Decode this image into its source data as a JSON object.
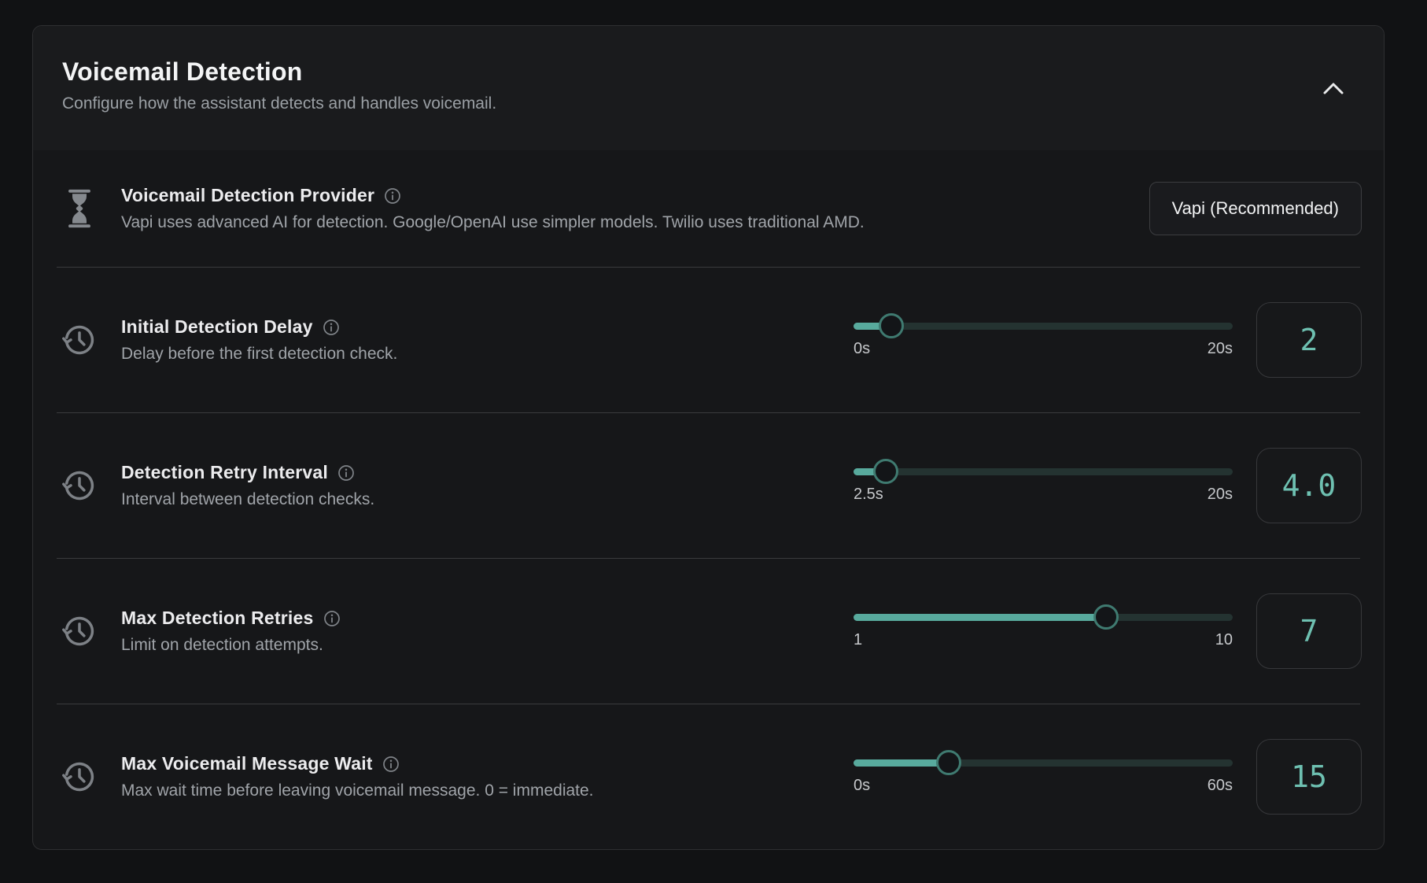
{
  "header": {
    "title": "Voicemail Detection",
    "subtitle": "Configure how the assistant detects and handles voicemail.",
    "collapse_icon": "chevron-up-icon"
  },
  "provider": {
    "icon": "hourglass-icon",
    "label": "Voicemail Detection Provider",
    "info_icon": "info-icon",
    "description": "Vapi uses advanced AI for detection. Google/OpenAI use simpler models. Twilio uses traditional AMD.",
    "button_label": "Vapi (Recommended)"
  },
  "sliders": [
    {
      "icon": "history-clock-icon",
      "label": "Initial Detection Delay",
      "info_icon": "info-icon",
      "description": "Delay before the first detection check.",
      "min": 0,
      "max": 20,
      "value": 2,
      "min_label": "0s",
      "max_label": "20s",
      "value_display": "2"
    },
    {
      "icon": "history-clock-icon",
      "label": "Detection Retry Interval",
      "info_icon": "info-icon",
      "description": "Interval between detection checks.",
      "min": 2.5,
      "max": 20,
      "value": 4,
      "min_label": "2.5s",
      "max_label": "20s",
      "value_display": "4.0"
    },
    {
      "icon": "history-clock-icon",
      "label": "Max Detection Retries",
      "info_icon": "info-icon",
      "description": "Limit on detection attempts.",
      "min": 1,
      "max": 10,
      "value": 7,
      "min_label": "1",
      "max_label": "10",
      "value_display": "7"
    },
    {
      "icon": "history-clock-icon",
      "label": "Max Voicemail Message Wait",
      "info_icon": "info-icon",
      "description": "Max wait time before leaving voicemail message. 0 = immediate.",
      "min": 0,
      "max": 60,
      "value": 15,
      "min_label": "0s",
      "max_label": "60s",
      "value_display": "15"
    }
  ],
  "colors": {
    "accent_teal_fill": "#58aa9d",
    "slider_track": "#243331",
    "value_text": "#6ec0b1",
    "panel_bg": "#161719",
    "header_bg": "#1a1b1d"
  }
}
